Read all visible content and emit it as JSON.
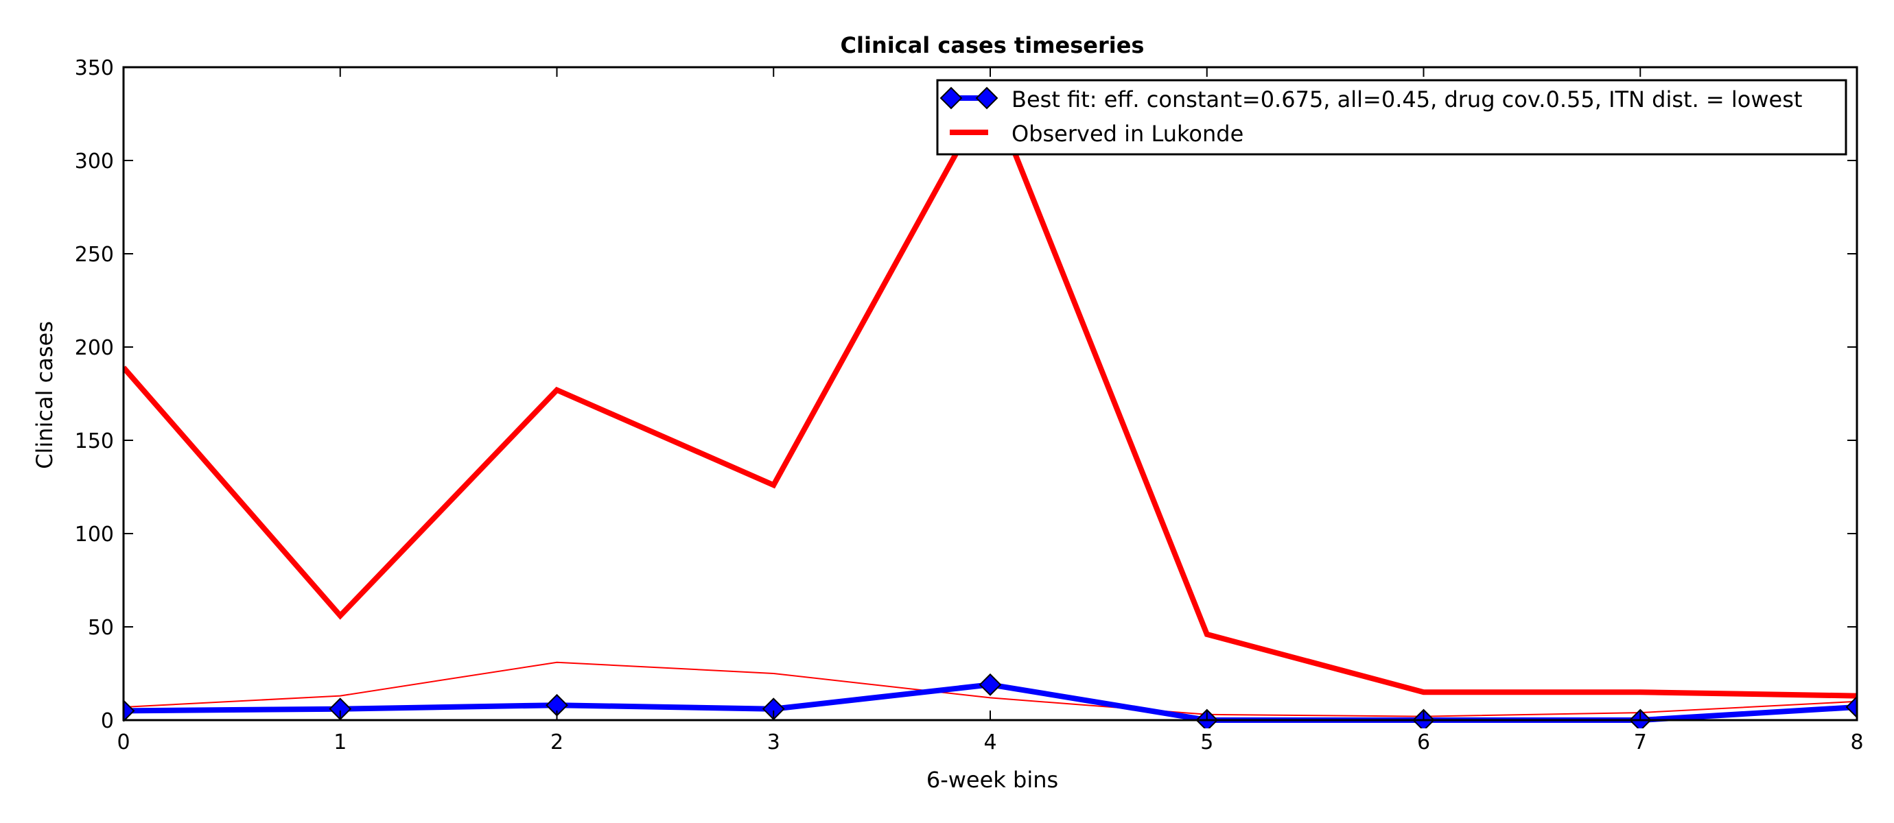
{
  "chart_data": {
    "type": "line",
    "title": "Clinical cases timeseries",
    "xlabel": "6-week bins",
    "ylabel": "Clinical cases",
    "xlim": [
      0,
      8
    ],
    "ylim": [
      0,
      350
    ],
    "xticks": [
      0,
      1,
      2,
      3,
      4,
      5,
      6,
      7,
      8
    ],
    "yticks": [
      0,
      50,
      100,
      150,
      200,
      250,
      300,
      350
    ],
    "grid": false,
    "legend_position": "upper-right",
    "x": [
      0,
      1,
      2,
      3,
      4,
      5,
      6,
      7,
      8
    ],
    "series": [
      {
        "name": "Best fit: eff. constant=0.675, all=0.45, drug cov.0.55, ITN dist. = lowest",
        "values": [
          5,
          6,
          8,
          6,
          19,
          0,
          0,
          0,
          7
        ],
        "color": "#0000ff",
        "marker": "diamond",
        "in_legend": true,
        "style": "thick"
      },
      {
        "name": "Observed in Lukonde",
        "values": [
          189,
          56,
          177,
          126,
          337,
          46,
          15,
          15,
          13
        ],
        "color": "#ff0000",
        "marker": "none",
        "in_legend": true,
        "style": "thick"
      },
      {
        "values": [
          7,
          13,
          31,
          25,
          12,
          3,
          2,
          4,
          10
        ],
        "color": "#ff0000",
        "marker": "none",
        "in_legend": false,
        "style": "thin"
      }
    ]
  }
}
